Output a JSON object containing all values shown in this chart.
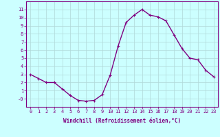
{
  "x": [
    0,
    1,
    2,
    3,
    4,
    5,
    6,
    7,
    8,
    9,
    10,
    11,
    12,
    13,
    14,
    15,
    16,
    17,
    18,
    19,
    20,
    21,
    22,
    23
  ],
  "y": [
    3.0,
    2.5,
    2.0,
    2.0,
    1.2,
    0.4,
    -0.2,
    -0.3,
    -0.2,
    0.5,
    2.9,
    6.5,
    9.4,
    10.3,
    11.0,
    10.3,
    10.1,
    9.6,
    7.9,
    6.2,
    5.0,
    4.8,
    3.5,
    2.7
  ],
  "line_color": "#800080",
  "marker": "+",
  "marker_size": 3,
  "bg_color": "#ccffff",
  "grid_color": "#b0d8d8",
  "xlabel": "Windchill (Refroidissement éolien,°C)",
  "xlabel_color": "#800080",
  "tick_color": "#800080",
  "ylim": [
    -1,
    12
  ],
  "xlim": [
    -0.5,
    23.5
  ],
  "yticks": [
    0,
    1,
    2,
    3,
    4,
    5,
    6,
    7,
    8,
    9,
    10,
    11
  ],
  "xticks": [
    0,
    1,
    2,
    3,
    4,
    5,
    6,
    7,
    8,
    9,
    10,
    11,
    12,
    13,
    14,
    15,
    16,
    17,
    18,
    19,
    20,
    21,
    22,
    23
  ],
  "ytick_labels": [
    "-0",
    "1",
    "2",
    "3",
    "4",
    "5",
    "6",
    "7",
    "8",
    "9",
    "10",
    "11"
  ],
  "spine_color": "#800080",
  "tick_fontsize": 5,
  "xlabel_fontsize": 5.5,
  "linewidth": 1.0,
  "markeredgewidth": 0.8
}
